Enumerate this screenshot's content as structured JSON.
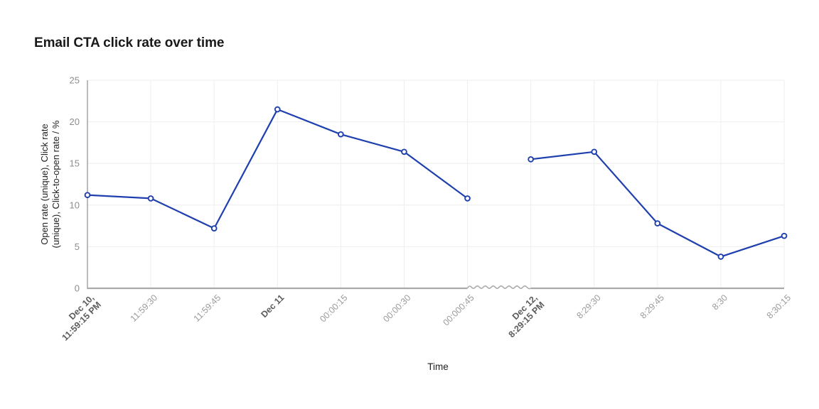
{
  "chart_data": {
    "type": "line",
    "title": "Email CTA click rate over time",
    "xlabel": "Time",
    "ylabel": "Open rate (unique), Click rate (unique), Click-to-open rate / %",
    "ylabel_lines": [
      "Open rate (unique), Click rate",
      "(unique), Click-to-open rate / %"
    ],
    "ylim": [
      0,
      25
    ],
    "yticks": [
      0,
      5,
      10,
      15,
      20,
      25
    ],
    "grid": true,
    "legend": "none",
    "marker": "open-circle",
    "categories": [
      "Dec 10, 11:59:15 PM",
      "11:59:30",
      "11:59:45",
      "Dec 11",
      "00:00:15",
      "00:00:30",
      "00:000:45",
      "Dec 12, 8:29:15 PM",
      "8:29:30",
      "8:29:45",
      "8:30",
      "8:30:15"
    ],
    "tick_display": [
      {
        "lines": [
          "Dec 10,",
          "11:59:15 PM"
        ],
        "bold": true
      },
      {
        "lines": [
          "11:59:30"
        ],
        "bold": false
      },
      {
        "lines": [
          "11:59:45"
        ],
        "bold": false
      },
      {
        "lines": [
          "Dec 11"
        ],
        "bold": true
      },
      {
        "lines": [
          "00:00:15"
        ],
        "bold": false
      },
      {
        "lines": [
          "00:00:30"
        ],
        "bold": false
      },
      {
        "lines": [
          "00:000:45"
        ],
        "bold": false
      },
      {
        "lines": [
          "Dec 12,",
          "8:29:15 PM"
        ],
        "bold": true
      },
      {
        "lines": [
          "8:29:30"
        ],
        "bold": false
      },
      {
        "lines": [
          "8:29:45"
        ],
        "bold": false
      },
      {
        "lines": [
          "8:30"
        ],
        "bold": false
      },
      {
        "lines": [
          "8:30:15"
        ],
        "bold": false
      }
    ],
    "values": [
      11.2,
      10.8,
      7.2,
      21.5,
      18.5,
      16.4,
      10.8,
      15.5,
      16.4,
      7.8,
      3.8,
      6.3
    ],
    "gap_after_index": 6,
    "axis_break": {
      "after_index": 6,
      "style": "squiggle"
    }
  },
  "colors": {
    "line": "#1e3fae",
    "marker_fill": "#ffffff",
    "axis": "#aaaaaa",
    "grid": "#eeeeee",
    "y_tick_label": "#8d8d8d",
    "x_tick_label": "#9b9b9b",
    "x_tick_label_bold": "#5c5c5c",
    "title": "#191919",
    "axis_title": "#222222",
    "background": "#ffffff"
  }
}
